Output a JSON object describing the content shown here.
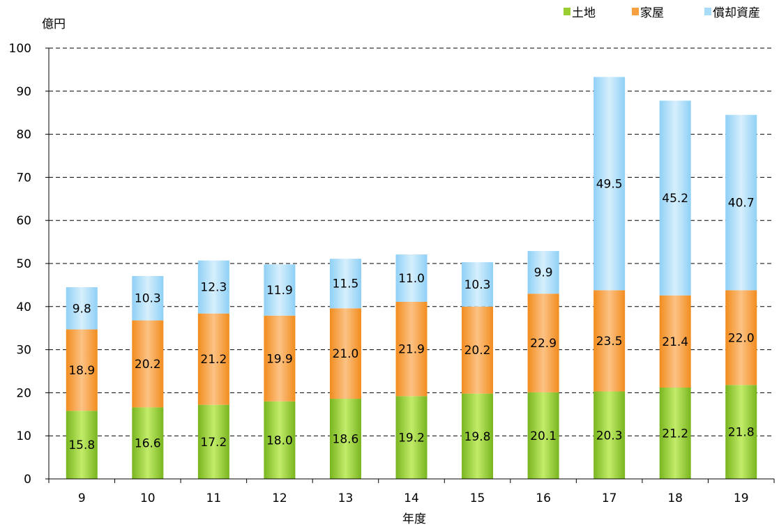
{
  "chart_data": {
    "type": "bar",
    "stacked": true,
    "ylabel": "億円",
    "xlabel": "年度",
    "ylim": [
      0,
      100
    ],
    "yticks": [
      0,
      10,
      20,
      30,
      40,
      50,
      60,
      70,
      80,
      90,
      100
    ],
    "grid": "horizontal-dashed",
    "legend_position": "top-right",
    "categories": [
      "9",
      "10",
      "11",
      "12",
      "13",
      "14",
      "15",
      "16",
      "17",
      "18",
      "19"
    ],
    "series": [
      {
        "name": "土地",
        "color": "#9acd32",
        "values": [
          15.8,
          16.6,
          17.2,
          18.0,
          18.6,
          19.2,
          19.8,
          20.1,
          20.3,
          21.2,
          21.8
        ]
      },
      {
        "name": "家屋",
        "color": "#f7a040",
        "values": [
          18.9,
          20.2,
          21.2,
          19.9,
          21.0,
          21.9,
          20.2,
          22.9,
          23.5,
          21.4,
          22.0
        ]
      },
      {
        "name": "償却資産",
        "color": "#a9dcf9",
        "values": [
          9.8,
          10.3,
          12.3,
          11.9,
          11.5,
          11.0,
          10.3,
          9.9,
          49.5,
          45.2,
          40.7
        ]
      }
    ]
  }
}
